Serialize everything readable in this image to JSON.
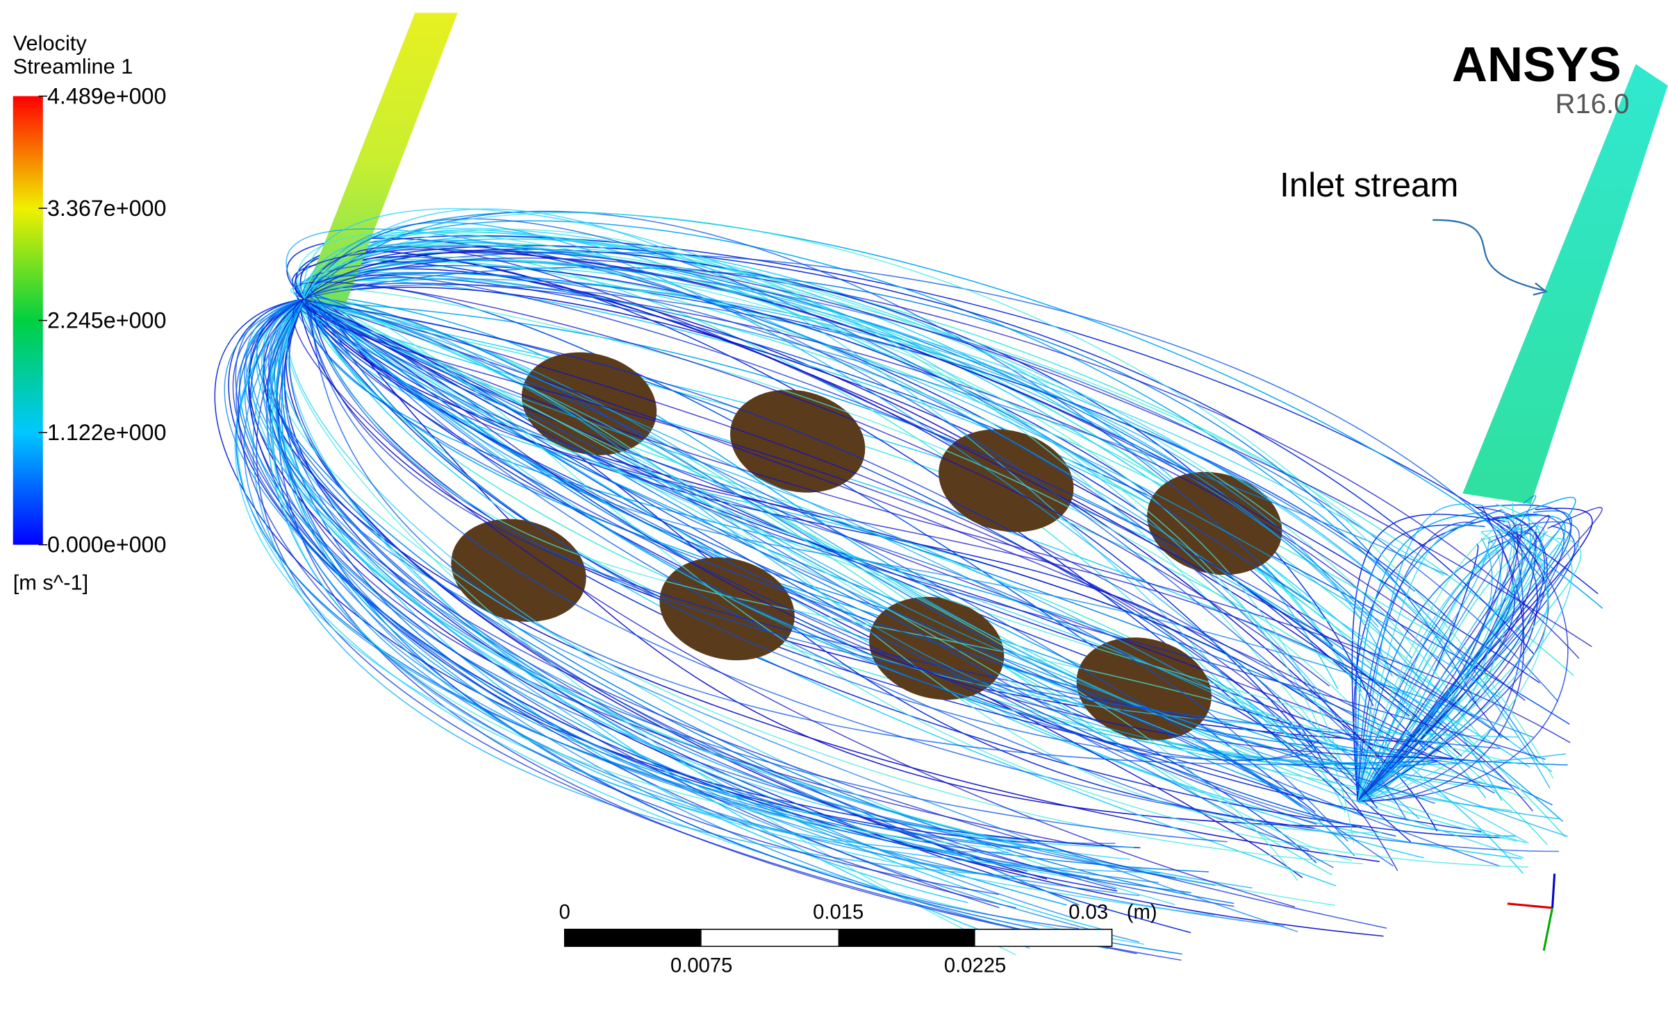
{
  "legend": {
    "title": "Velocity",
    "subtitle": "Streamline 1",
    "ticks": [
      "4.489e+000",
      "3.367e+000",
      "2.245e+000",
      "1.122e+000",
      "0.000e+000"
    ],
    "unit": "[m s^-1]"
  },
  "logo": {
    "name": "ANSYS",
    "version": "R16.0"
  },
  "annotation": "Inlet stream",
  "scale_bar": {
    "top_labels": [
      "0",
      "0.015",
      "0.03"
    ],
    "unit": "(m)",
    "bottom_labels": [
      "0.0075",
      "0.0225"
    ]
  }
}
